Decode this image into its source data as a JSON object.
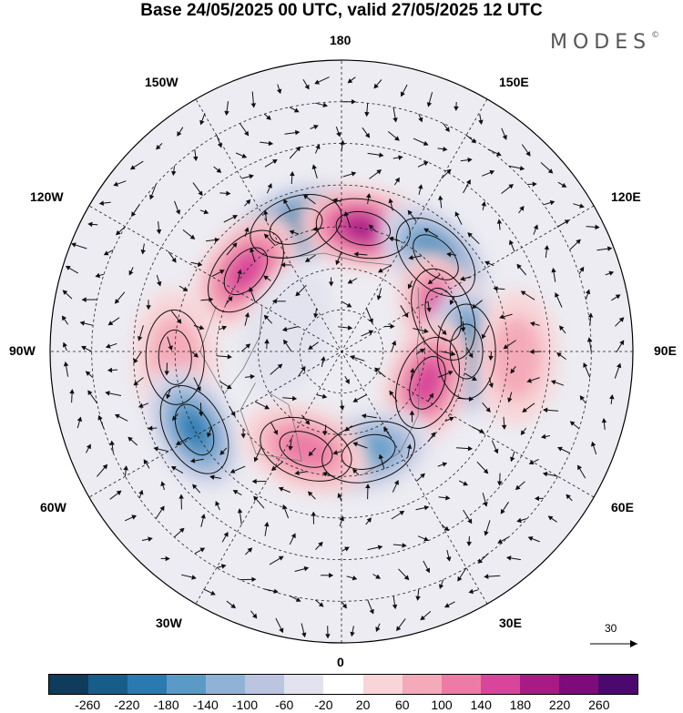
{
  "header": {
    "title": "Base 24/05/2025 00 UTC, valid 27/05/2025 12 UTC",
    "brand": "MODES",
    "brand_mark": "©"
  },
  "map_labels": {
    "top": "180",
    "bottom": "0",
    "left": "90W",
    "right": "90E",
    "upper_left_outer": "150W",
    "upper_right_outer": "150E",
    "upper_left_inner": "120W",
    "upper_right_inner": "120E",
    "lower_left_inner": "60W",
    "lower_right_inner": "60E",
    "lower_left_outer": "30W",
    "lower_right_outer": "30E"
  },
  "reference_vector": {
    "label": "30"
  },
  "colorbar": {
    "tick_labels": [
      "-260",
      "-220",
      "-180",
      "-140",
      "-100",
      "-60",
      "-20",
      "20",
      "60",
      "100",
      "140",
      "180",
      "220",
      "260"
    ],
    "colors": [
      "#0f3b5c",
      "#175d8a",
      "#2a7ab0",
      "#5a9ac6",
      "#8fb3d7",
      "#bcc5e0",
      "#e3e3ef",
      "#ffffff",
      "#f8d5d8",
      "#f4aab8",
      "#ec7ca6",
      "#d8459a",
      "#a81a86",
      "#7d0b7a",
      "#4b086e"
    ]
  },
  "anomalies": [
    {
      "lon": -160,
      "colat": 32,
      "value": -260
    },
    {
      "lon": 170,
      "colat": 30,
      "value": 200
    },
    {
      "lon": -130,
      "colat": 30,
      "value": 180
    },
    {
      "lon": 135,
      "colat": 32,
      "value": -200
    },
    {
      "lon": 110,
      "colat": 26,
      "value": 160
    },
    {
      "lon": 90,
      "colat": 30,
      "value": -240
    },
    {
      "lon": 70,
      "colat": 22,
      "value": 170
    },
    {
      "lon": 88,
      "colat": 42,
      "value": 80
    },
    {
      "lon": -88,
      "colat": 40,
      "value": 110
    },
    {
      "lon": -62,
      "colat": 40,
      "value": -200
    },
    {
      "lon": 15,
      "colat": 25,
      "value": -160
    },
    {
      "lon": -20,
      "colat": 25,
      "value": 120
    },
    {
      "lon": -110,
      "colat": 14,
      "value": -60
    }
  ]
}
